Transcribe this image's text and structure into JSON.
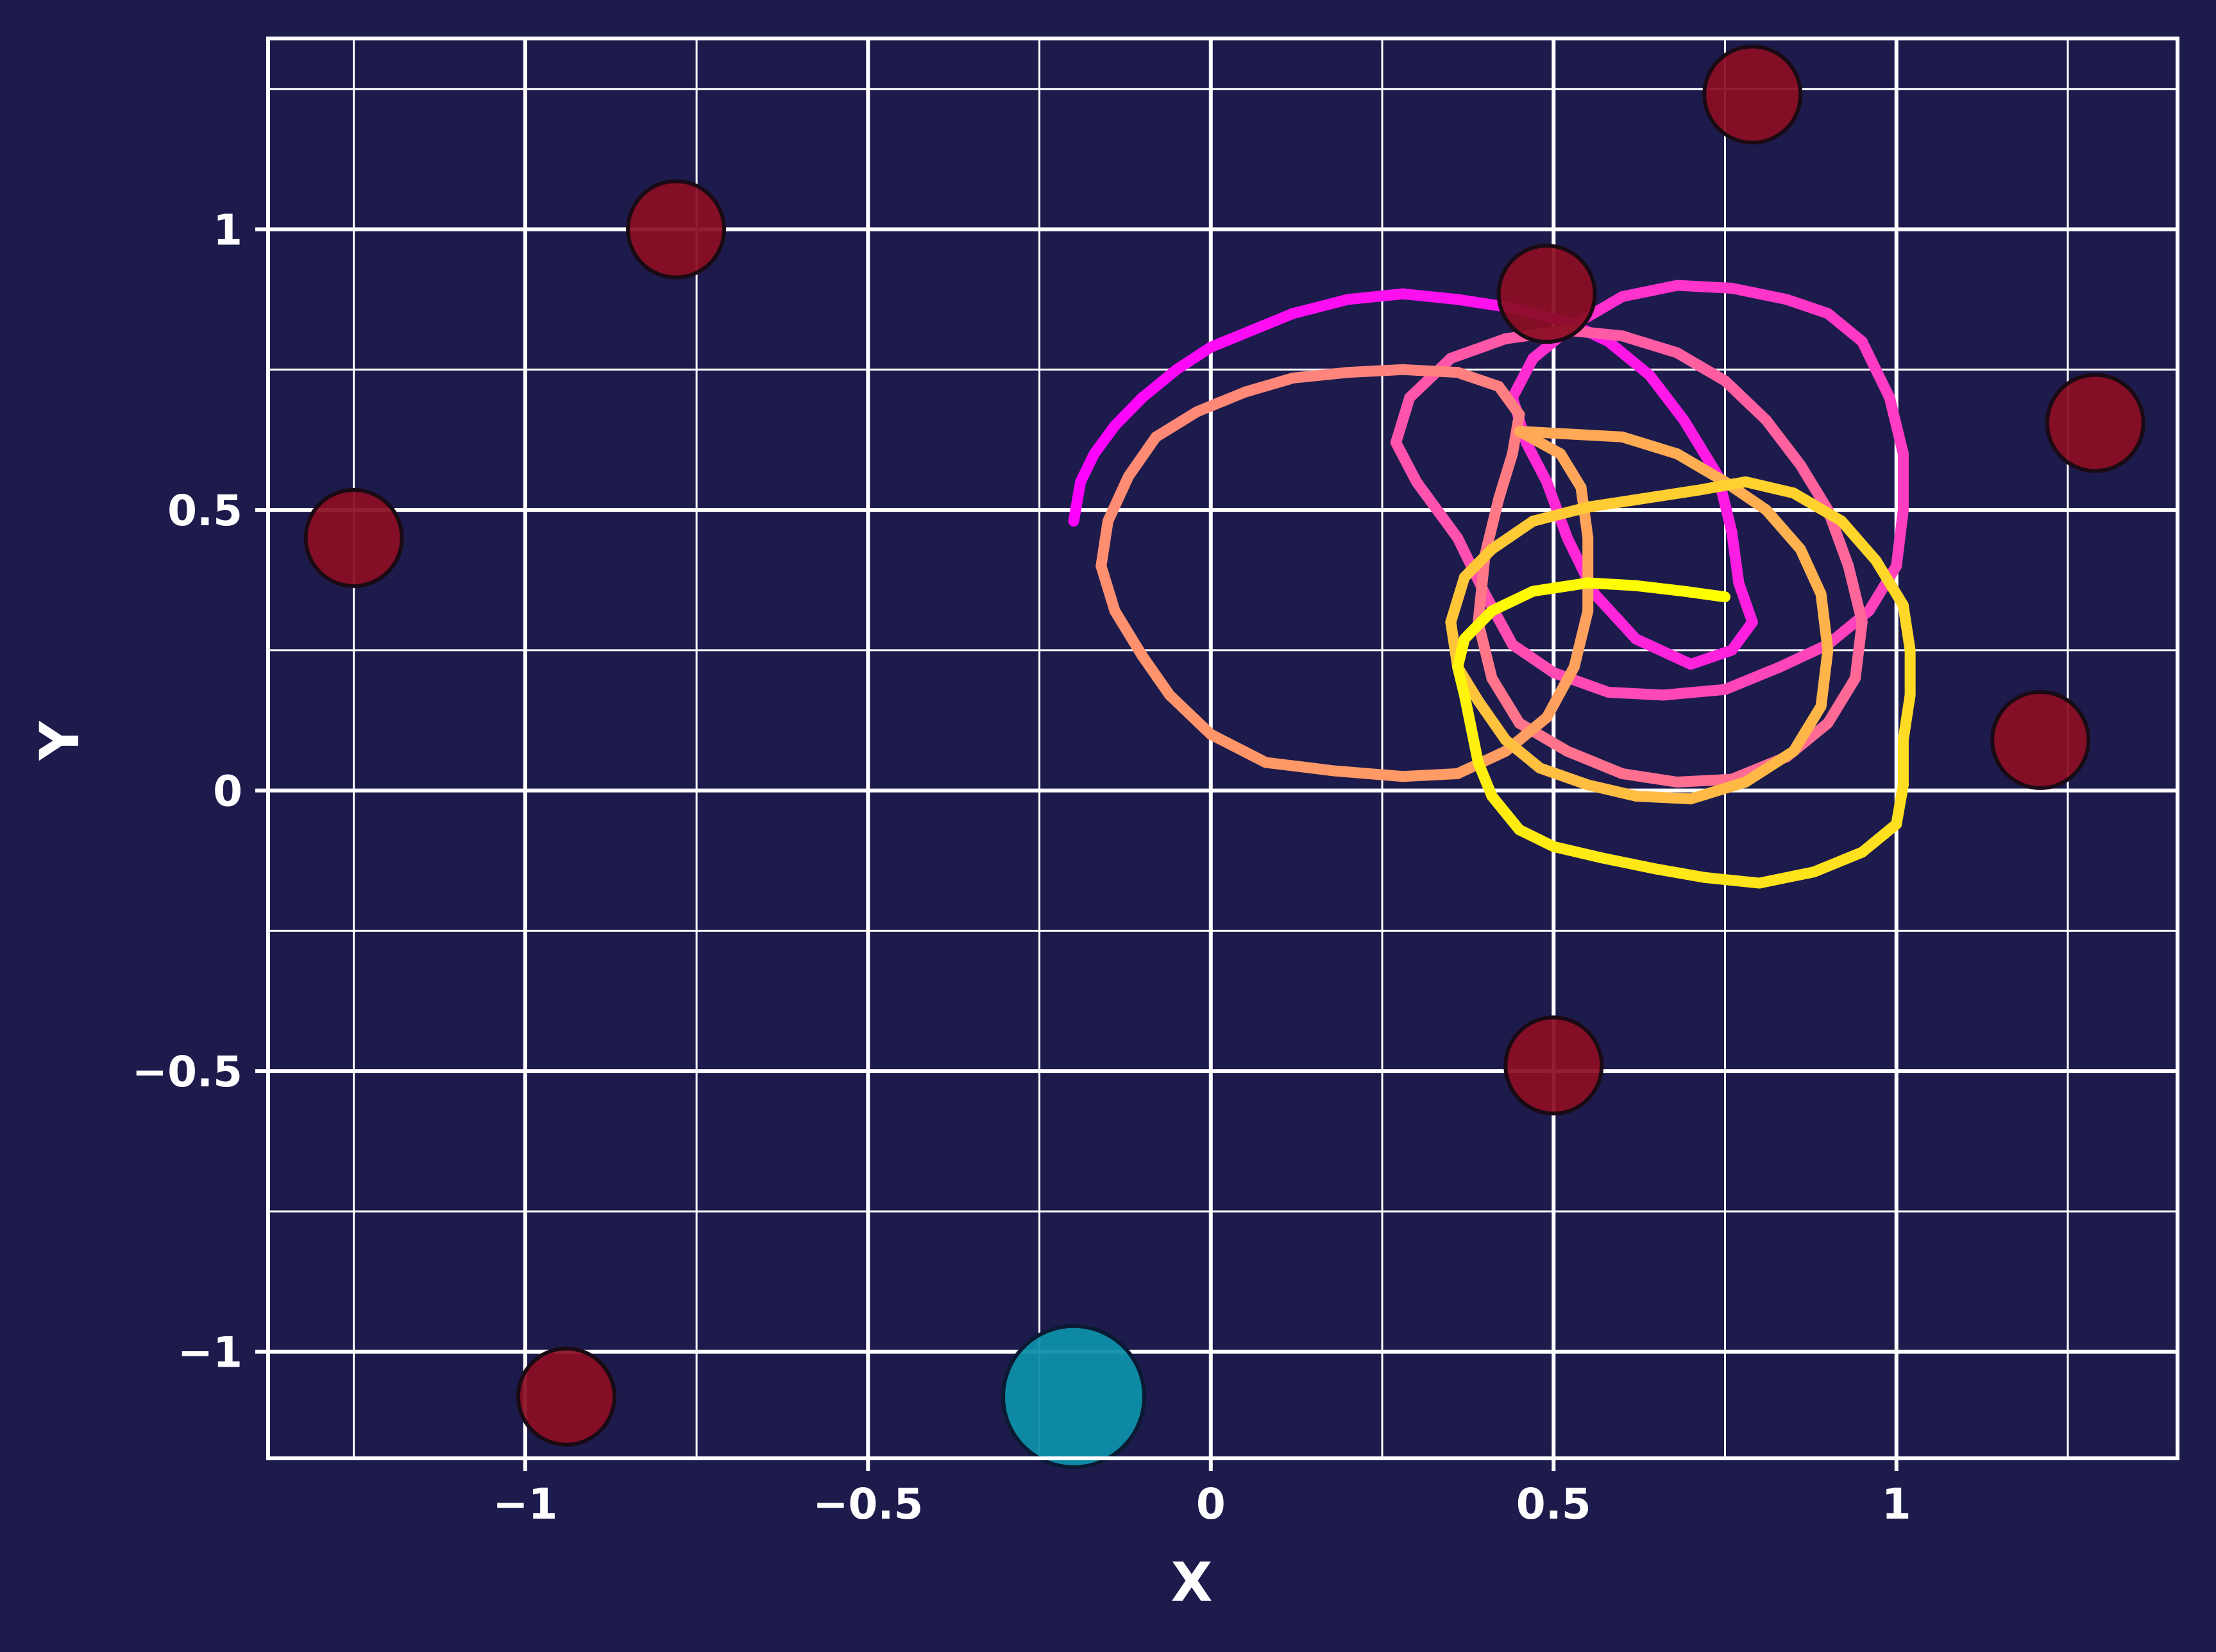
{
  "chart_data": {
    "type": "scatter",
    "xlabel": "X",
    "ylabel": "Y",
    "xlim": [
      -1.375,
      1.41
    ],
    "ylim": [
      -1.19,
      1.34
    ],
    "x_ticks": [
      -1,
      -0.5,
      0,
      0.5,
      1
    ],
    "x_tick_labels": [
      "−1",
      "−0.5",
      "0",
      "0.5",
      "1"
    ],
    "y_ticks": [
      -1,
      -0.5,
      0,
      0.5,
      1
    ],
    "y_tick_labels": [
      "−1",
      "−0.5",
      "0",
      "0.5",
      "1"
    ],
    "minor_x_ticks": [
      -1.25,
      -0.75,
      -0.25,
      0.25,
      0.75,
      1.25
    ],
    "minor_y_ticks": [
      -0.75,
      -0.25,
      0.25,
      0.75,
      1.25
    ],
    "grid": true,
    "colors": {
      "background": "#1d1b4c",
      "grid": "#ffffff",
      "obstacle": "#8b0d22",
      "goal": "#0e8fa8",
      "trail_start": "#ff00ff",
      "trail_end": "#ffff00"
    },
    "obstacles": [
      {
        "x": -1.25,
        "y": 0.45
      },
      {
        "x": -0.78,
        "y": 1.0
      },
      {
        "x": -0.94,
        "y": -1.08
      },
      {
        "x": 0.49,
        "y": 0.885
      },
      {
        "x": 0.79,
        "y": 1.24
      },
      {
        "x": 1.29,
        "y": 0.655
      },
      {
        "x": 1.21,
        "y": 0.09
      },
      {
        "x": 0.5,
        "y": -0.49
      }
    ],
    "goal": {
      "x": -0.2,
      "y": -1.08
    },
    "trajectory": [
      [
        -0.2,
        0.48
      ],
      [
        -0.19,
        0.55
      ],
      [
        -0.17,
        0.6
      ],
      [
        -0.14,
        0.65
      ],
      [
        -0.1,
        0.7
      ],
      [
        -0.05,
        0.75
      ],
      [
        0.0,
        0.79
      ],
      [
        0.06,
        0.82
      ],
      [
        0.12,
        0.85
      ],
      [
        0.2,
        0.875
      ],
      [
        0.28,
        0.885
      ],
      [
        0.36,
        0.875
      ],
      [
        0.44,
        0.86
      ],
      [
        0.52,
        0.835
      ],
      [
        0.58,
        0.8
      ],
      [
        0.64,
        0.74
      ],
      [
        0.69,
        0.66
      ],
      [
        0.74,
        0.56
      ],
      [
        0.76,
        0.46
      ],
      [
        0.77,
        0.37
      ],
      [
        0.79,
        0.3
      ],
      [
        0.76,
        0.25
      ],
      [
        0.7,
        0.225
      ],
      [
        0.62,
        0.27
      ],
      [
        0.56,
        0.35
      ],
      [
        0.52,
        0.45
      ],
      [
        0.49,
        0.55
      ],
      [
        0.46,
        0.62
      ],
      [
        0.44,
        0.7
      ],
      [
        0.47,
        0.77
      ],
      [
        0.53,
        0.83
      ],
      [
        0.6,
        0.88
      ],
      [
        0.68,
        0.9
      ],
      [
        0.76,
        0.895
      ],
      [
        0.84,
        0.875
      ],
      [
        0.9,
        0.85
      ],
      [
        0.95,
        0.8
      ],
      [
        0.99,
        0.7
      ],
      [
        1.01,
        0.6
      ],
      [
        1.01,
        0.5
      ],
      [
        1.0,
        0.4
      ],
      [
        0.96,
        0.32
      ],
      [
        0.9,
        0.26
      ],
      [
        0.83,
        0.22
      ],
      [
        0.75,
        0.18
      ],
      [
        0.66,
        0.17
      ],
      [
        0.58,
        0.175
      ],
      [
        0.5,
        0.21
      ],
      [
        0.44,
        0.26
      ],
      [
        0.4,
        0.35
      ],
      [
        0.36,
        0.45
      ],
      [
        0.3,
        0.55
      ],
      [
        0.27,
        0.62
      ],
      [
        0.29,
        0.7
      ],
      [
        0.35,
        0.77
      ],
      [
        0.43,
        0.805
      ],
      [
        0.52,
        0.82
      ],
      [
        0.6,
        0.81
      ],
      [
        0.68,
        0.78
      ],
      [
        0.75,
        0.73
      ],
      [
        0.81,
        0.66
      ],
      [
        0.86,
        0.58
      ],
      [
        0.9,
        0.5
      ],
      [
        0.93,
        0.4
      ],
      [
        0.95,
        0.3
      ],
      [
        0.94,
        0.2
      ],
      [
        0.9,
        0.12
      ],
      [
        0.84,
        0.06
      ],
      [
        0.76,
        0.02
      ],
      [
        0.68,
        0.015
      ],
      [
        0.6,
        0.03
      ],
      [
        0.52,
        0.07
      ],
      [
        0.45,
        0.12
      ],
      [
        0.41,
        0.2
      ],
      [
        0.39,
        0.3
      ],
      [
        0.4,
        0.42
      ],
      [
        0.42,
        0.52
      ],
      [
        0.44,
        0.6
      ],
      [
        0.45,
        0.67
      ],
      [
        0.42,
        0.72
      ],
      [
        0.36,
        0.745
      ],
      [
        0.28,
        0.75
      ],
      [
        0.2,
        0.745
      ],
      [
        0.12,
        0.735
      ],
      [
        0.05,
        0.71
      ],
      [
        -0.02,
        0.675
      ],
      [
        -0.08,
        0.63
      ],
      [
        -0.12,
        0.56
      ],
      [
        -0.15,
        0.48
      ],
      [
        -0.16,
        0.4
      ],
      [
        -0.14,
        0.32
      ],
      [
        -0.1,
        0.24
      ],
      [
        -0.06,
        0.17
      ],
      [
        0.0,
        0.1
      ],
      [
        0.08,
        0.05
      ],
      [
        0.18,
        0.035
      ],
      [
        0.28,
        0.025
      ],
      [
        0.36,
        0.03
      ],
      [
        0.43,
        0.07
      ],
      [
        0.49,
        0.13
      ],
      [
        0.53,
        0.22
      ],
      [
        0.55,
        0.32
      ],
      [
        0.55,
        0.45
      ],
      [
        0.54,
        0.54
      ],
      [
        0.51,
        0.6
      ],
      [
        0.45,
        0.64
      ],
      [
        0.6,
        0.63
      ],
      [
        0.68,
        0.6
      ],
      [
        0.75,
        0.55
      ],
      [
        0.81,
        0.5
      ],
      [
        0.86,
        0.43
      ],
      [
        0.89,
        0.35
      ],
      [
        0.9,
        0.25
      ],
      [
        0.89,
        0.15
      ],
      [
        0.85,
        0.07
      ],
      [
        0.78,
        0.015
      ],
      [
        0.7,
        -0.015
      ],
      [
        0.62,
        -0.01
      ],
      [
        0.55,
        0.01
      ],
      [
        0.48,
        0.04
      ],
      [
        0.43,
        0.09
      ],
      [
        0.39,
        0.16
      ],
      [
        0.36,
        0.22
      ],
      [
        0.35,
        0.3
      ],
      [
        0.37,
        0.38
      ],
      [
        0.41,
        0.43
      ],
      [
        0.47,
        0.48
      ],
      [
        0.55,
        0.505
      ],
      [
        0.63,
        0.52
      ],
      [
        0.71,
        0.535
      ],
      [
        0.78,
        0.55
      ],
      [
        0.85,
        0.53
      ],
      [
        0.92,
        0.48
      ],
      [
        0.97,
        0.41
      ],
      [
        1.01,
        0.33
      ],
      [
        1.02,
        0.25
      ],
      [
        1.02,
        0.17
      ],
      [
        1.01,
        0.09
      ],
      [
        1.01,
        0.01
      ],
      [
        1.0,
        -0.06
      ],
      [
        0.95,
        -0.11
      ],
      [
        0.88,
        -0.145
      ],
      [
        0.8,
        -0.165
      ],
      [
        0.72,
        -0.155
      ],
      [
        0.65,
        -0.14
      ],
      [
        0.57,
        -0.12
      ],
      [
        0.5,
        -0.1
      ],
      [
        0.45,
        -0.07
      ],
      [
        0.41,
        -0.01
      ],
      [
        0.39,
        0.05
      ],
      [
        0.38,
        0.11
      ],
      [
        0.37,
        0.17
      ],
      [
        0.36,
        0.22
      ],
      [
        0.37,
        0.27
      ],
      [
        0.41,
        0.32
      ],
      [
        0.47,
        0.355
      ],
      [
        0.55,
        0.37
      ],
      [
        0.62,
        0.365
      ],
      [
        0.69,
        0.355
      ],
      [
        0.75,
        0.345
      ]
    ]
  }
}
